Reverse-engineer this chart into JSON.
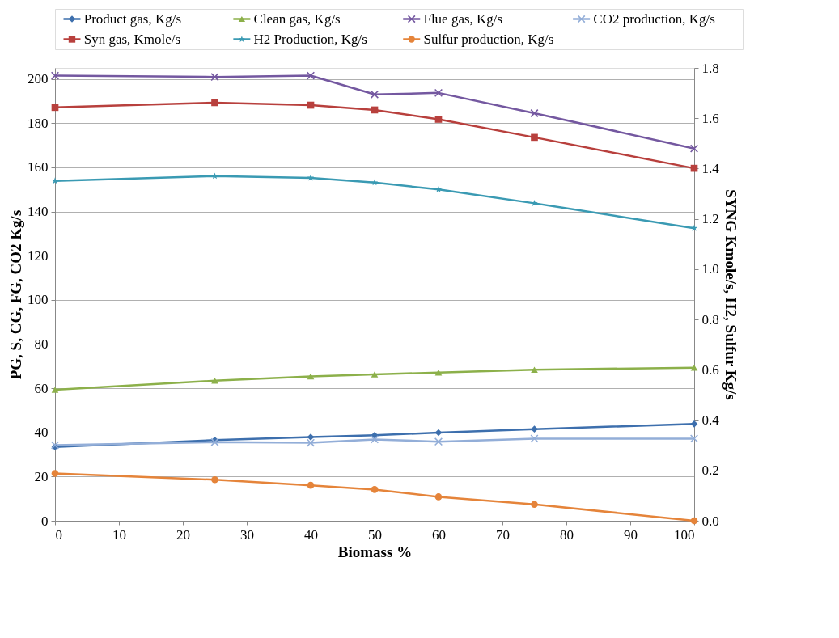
{
  "chart_data": {
    "type": "line",
    "xlabel": "Biomass %",
    "ylabel": "PG, S, CG, FG, CO2 Kg/s",
    "y2label": "SYNG Kmole/s, H2, Sulfur  Kg/s",
    "x": [
      0,
      25,
      40,
      50,
      60,
      75,
      100
    ],
    "xlim": [
      0,
      100
    ],
    "xticks": [
      0,
      10,
      20,
      30,
      40,
      50,
      60,
      70,
      80,
      90,
      100
    ],
    "ylim": [
      0,
      205
    ],
    "yticks": [
      0,
      20,
      40,
      60,
      80,
      100,
      120,
      140,
      160,
      180,
      200
    ],
    "y2lim": [
      0,
      1.8
    ],
    "y2ticks": [
      {
        "value": 0,
        "label": "0.0"
      },
      0.2,
      0.4,
      0.6,
      0.8,
      {
        "value": 1,
        "label": "1.0"
      },
      1.2,
      1.4,
      1.6,
      1.8
    ],
    "grid": "y",
    "legend": "top",
    "line_style": "solid",
    "series": [
      {
        "name": "Product gas,  Kg/s",
        "color": "#3d6fad",
        "marker": "diamond",
        "values": [
          33.4,
          36.5,
          37.9,
          38.7,
          39.9,
          41.5,
          43.8
        ]
      },
      {
        "name": "Clean gas,  Kg/s",
        "color": "#8cb04a",
        "marker": "triangle",
        "values": [
          59.3,
          63.4,
          65.3,
          66.3,
          67.1,
          68.4,
          69.3
        ]
      },
      {
        "name": "Flue gas,  Kg/s",
        "color": "#7458a0",
        "marker": "cross",
        "values": [
          201.5,
          200.9,
          201.5,
          193.0,
          193.7,
          184.5,
          168.5
        ]
      },
      {
        "name": "CO2 production, Kg/s",
        "color": "#93aed8",
        "marker": "cross",
        "values": [
          34.2,
          35.6,
          35.3,
          36.8,
          35.8,
          37.2,
          37.2
        ]
      },
      {
        "name": "Syn gas,  Kmole/s",
        "color": "#b8403d",
        "marker": "square",
        "axis": "y2",
        "values": [
          1.643,
          1.662,
          1.652,
          1.633,
          1.596,
          1.524,
          1.401
        ]
      },
      {
        "name": "H2 Production, Kg/s",
        "color": "#3a9ab3",
        "marker": "star",
        "axis": "y2",
        "values": [
          1.351,
          1.37,
          1.363,
          1.344,
          1.317,
          1.262,
          1.163
        ]
      },
      {
        "name": "Sulfur production, Kg/s",
        "color": "#e5843a",
        "marker": "circle",
        "axis": "y2",
        "values": [
          0.188,
          0.163,
          0.141,
          0.124,
          0.095,
          0.065,
          0
        ]
      }
    ]
  }
}
